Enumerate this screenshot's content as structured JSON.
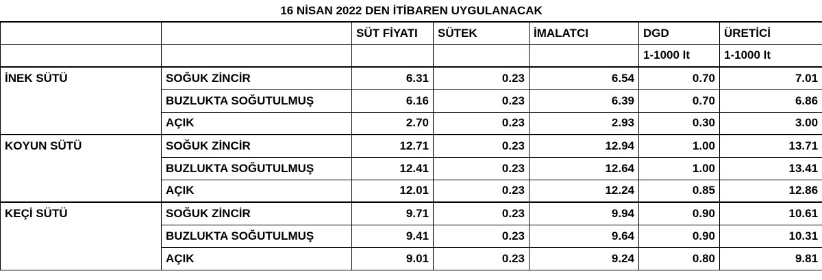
{
  "title": "16 NİSAN 2022 DEN İTİBAREN UYGULANACAK",
  "header": {
    "columns": [
      "SÜT FİYATI",
      "SÜTEK",
      "İMALATCI",
      "DGD",
      "ÜRETİCİ"
    ],
    "unit_labels": [
      "1-1000 lt",
      "1-1000 lt"
    ]
  },
  "groups": [
    {
      "animal": "İNEK SÜTÜ",
      "rows": [
        {
          "type": "SOĞUK ZİNCİR",
          "values": [
            "6.31",
            "0.23",
            "6.54",
            "0.70",
            "7.01"
          ]
        },
        {
          "type": "BUZLUKTA SOĞUTULMUŞ",
          "values": [
            "6.16",
            "0.23",
            "6.39",
            "0.70",
            "6.86"
          ]
        },
        {
          "type": "AÇIK",
          "values": [
            "2.70",
            "0.23",
            "2.93",
            "0.30",
            "3.00"
          ]
        }
      ]
    },
    {
      "animal": "KOYUN SÜTÜ",
      "rows": [
        {
          "type": "SOĞUK ZİNCİR",
          "values": [
            "12.71",
            "0.23",
            "12.94",
            "1.00",
            "13.71"
          ]
        },
        {
          "type": "BUZLUKTA SOĞUTULMUŞ",
          "values": [
            "12.41",
            "0.23",
            "12.64",
            "1.00",
            "13.41"
          ]
        },
        {
          "type": "AÇIK",
          "values": [
            "12.01",
            "0.23",
            "12.24",
            "0.85",
            "12.86"
          ]
        }
      ]
    },
    {
      "animal": "KEÇİ SÜTÜ",
      "rows": [
        {
          "type": "SOĞUK ZİNCİR",
          "values": [
            "9.71",
            "0.23",
            "9.94",
            "0.90",
            "10.61"
          ]
        },
        {
          "type": "BUZLUKTA SOĞUTULMUŞ",
          "values": [
            "9.41",
            "0.23",
            "9.64",
            "0.90",
            "10.31"
          ]
        },
        {
          "type": "AÇIK",
          "values": [
            "9.01",
            "0.23",
            "9.24",
            "0.80",
            "9.81"
          ]
        }
      ]
    }
  ]
}
